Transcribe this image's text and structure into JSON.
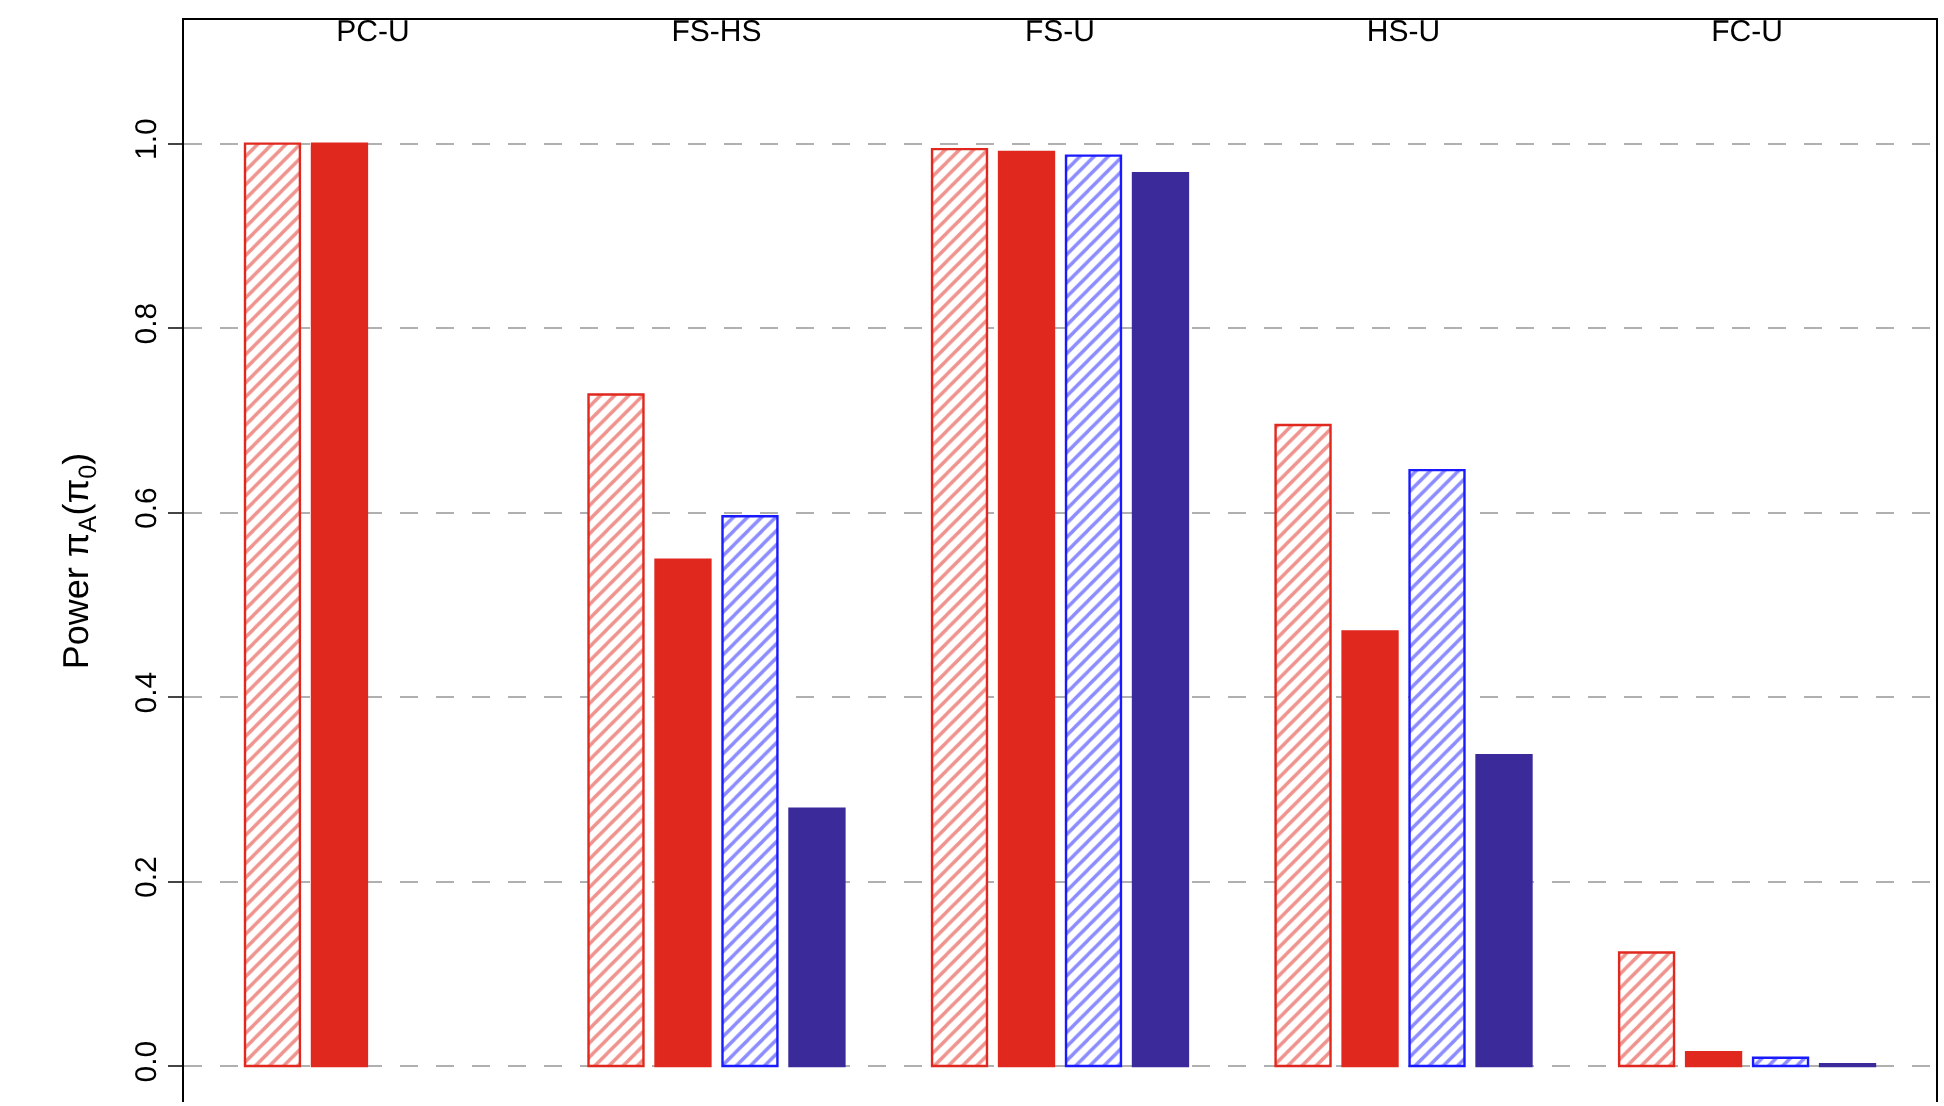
{
  "chart_data": {
    "type": "bar",
    "ylabel": "Power π$_{A}$(π$_{0}$)",
    "categories": [
      "PC-U",
      "FS-HS",
      "FS-U",
      "HS-U",
      "FC-U"
    ],
    "series": [
      {
        "color": "#e0281e",
        "values": [
          1.0,
          0.728,
          0.994,
          0.695,
          0.123
        ]
      },
      {
        "color": "#e0281e",
        "values": [
          1.0,
          0.549,
          0.991,
          0.471,
          0.015
        ]
      },
      {
        "color": "#1a1aff",
        "values": [
          null,
          0.596,
          0.987,
          0.646,
          0.009
        ]
      },
      {
        "color": "#3a2a9a",
        "values": [
          null,
          0.279,
          0.968,
          0.337,
          0.002
        ]
      }
    ],
    "ylim": [
      -0.039,
      1.134
    ],
    "yticks": [
      {
        "value": 0,
        "label": "0.0"
      },
      0.2,
      0.4,
      0.6,
      0.8,
      {
        "value": 1,
        "label": "1.0"
      }
    ],
    "grid": "y"
  }
}
